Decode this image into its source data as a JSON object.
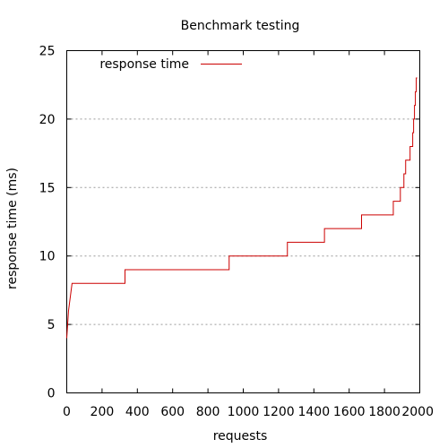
{
  "chart_data": {
    "type": "line",
    "title": "Benchmark testing",
    "xlabel": "requests",
    "ylabel": "response time (ms)",
    "xlim": [
      0,
      2000
    ],
    "ylim": [
      0,
      25
    ],
    "xticks": [
      0,
      200,
      400,
      600,
      800,
      1000,
      1200,
      1400,
      1600,
      1800,
      2000
    ],
    "yticks": [
      0,
      5,
      10,
      15,
      20,
      25
    ],
    "ygrid": true,
    "legend_position": "top-left",
    "series": [
      {
        "name": "response time",
        "color": "#cc0000",
        "step": true,
        "points": [
          [
            0,
            4
          ],
          [
            5,
            5
          ],
          [
            10,
            6
          ],
          [
            20,
            7
          ],
          [
            30,
            8
          ],
          [
            330,
            8
          ],
          [
            330,
            9
          ],
          [
            920,
            9
          ],
          [
            920,
            10
          ],
          [
            1250,
            10
          ],
          [
            1250,
            11
          ],
          [
            1460,
            11
          ],
          [
            1460,
            12
          ],
          [
            1670,
            12
          ],
          [
            1670,
            13
          ],
          [
            1850,
            13
          ],
          [
            1850,
            14
          ],
          [
            1890,
            14
          ],
          [
            1890,
            15
          ],
          [
            1910,
            15
          ],
          [
            1910,
            16
          ],
          [
            1920,
            16
          ],
          [
            1920,
            17
          ],
          [
            1945,
            17
          ],
          [
            1945,
            18
          ],
          [
            1960,
            18
          ],
          [
            1960,
            19
          ],
          [
            1965,
            19
          ],
          [
            1965,
            20
          ],
          [
            1970,
            20
          ],
          [
            1970,
            21
          ],
          [
            1975,
            21
          ],
          [
            1975,
            22
          ],
          [
            1980,
            22
          ],
          [
            1980,
            23
          ],
          [
            1985,
            23
          ]
        ]
      }
    ]
  }
}
